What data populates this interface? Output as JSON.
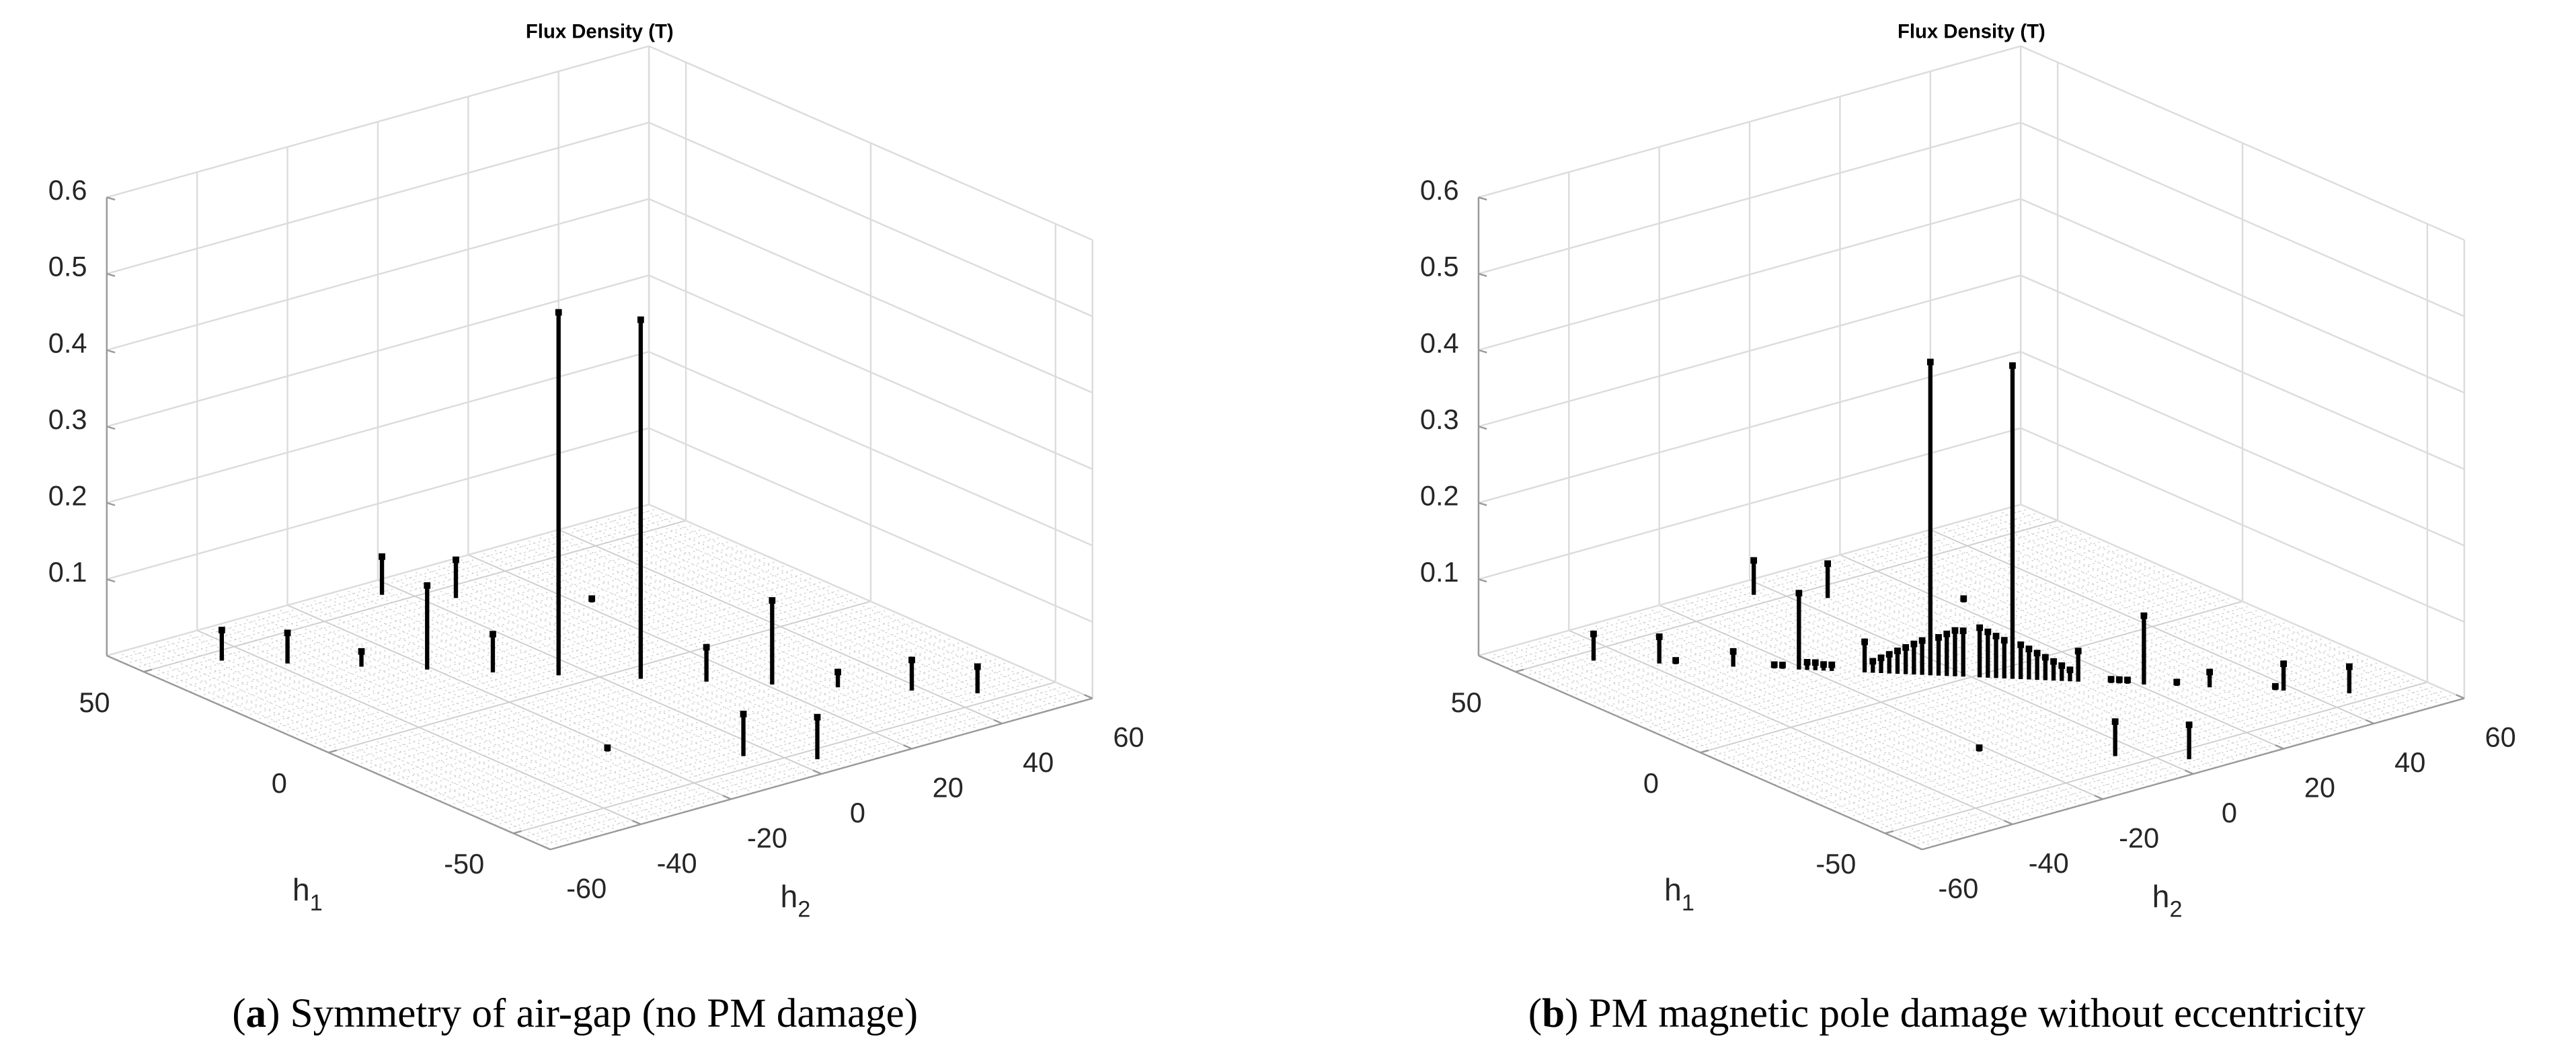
{
  "chart_data": [
    {
      "type": "stem3",
      "title": "Flux Density (T)",
      "xlabel": "h",
      "xlabel_subscript": "1",
      "ylabel": "h",
      "ylabel_subscript": "2",
      "xlim": [
        -60,
        60
      ],
      "xticks": [
        -50,
        0,
        50
      ],
      "ylim": [
        -60,
        60
      ],
      "yticks": [
        -60,
        -40,
        -20,
        0,
        20,
        40,
        60
      ],
      "zlim": [
        0,
        0.6
      ],
      "zticks": [
        0.1,
        0.2,
        0.3,
        0.4,
        0.5,
        0.6
      ],
      "color": "#000000",
      "grid": true,
      "x": [
        46,
        38,
        29,
        21,
        13,
        5,
        -5,
        -13,
        -21,
        -29,
        -38,
        -46,
        54,
        45,
        -45,
        -54,
        29,
        -29
      ],
      "y": [
        -46,
        -38,
        -29,
        -21,
        -13,
        -5,
        5,
        13,
        21,
        29,
        38,
        46,
        -4,
        5,
        -5,
        4,
        22,
        -22
      ],
      "z": [
        0.04,
        0.04,
        0.02,
        0.11,
        0.05,
        0.475,
        0.47,
        0.045,
        0.11,
        0.02,
        0.04,
        0.035,
        0.05,
        0.05,
        0.055,
        0.055,
        0.005,
        0.005
      ],
      "caption": [
        "(",
        "a",
        ") Symmetry of air-gap (no PM damage)"
      ]
    },
    {
      "type": "stem3",
      "title": "Flux Density (T)",
      "xlabel": "h",
      "xlabel_subscript": "1",
      "ylabel": "h",
      "ylabel_subscript": "2",
      "xlim": [
        -60,
        60
      ],
      "xticks": [
        -50,
        0,
        50
      ],
      "ylim": [
        -60,
        60
      ],
      "yticks": [
        -60,
        -40,
        -20,
        0,
        20,
        40,
        60
      ],
      "zlim": [
        0,
        0.6
      ],
      "zticks": [
        0.1,
        0.2,
        0.3,
        0.4,
        0.5,
        0.6
      ],
      "color": "#000000",
      "grid": true,
      "x": [
        46,
        38,
        36,
        29,
        24,
        23,
        21,
        20,
        19,
        18,
        17,
        13,
        12,
        11,
        10,
        9,
        8,
        7,
        6,
        5,
        4,
        3,
        2,
        1,
        -1,
        -2,
        -3,
        -4,
        -5,
        -6,
        -7,
        -8,
        -9,
        -10,
        -11,
        -12,
        -13,
        -17,
        -18,
        -19,
        -21,
        -25,
        -29,
        -37,
        -38,
        -46,
        54,
        45,
        -45,
        -54,
        29,
        -29
      ],
      "y": [
        -46,
        -38,
        -36,
        -29,
        -24,
        -23,
        -21,
        -20,
        -19,
        -18,
        -17,
        -13,
        -12,
        -11,
        -10,
        -9,
        -8,
        -7,
        -6,
        -5,
        -4,
        -3,
        -2,
        -1,
        1,
        2,
        3,
        4,
        5,
        6,
        7,
        8,
        9,
        10,
        11,
        12,
        13,
        17,
        18,
        19,
        21,
        25,
        29,
        37,
        38,
        46,
        -4,
        5,
        -5,
        4,
        22,
        -22
      ],
      "z": [
        0.035,
        0.035,
        0.005,
        0.02,
        0.005,
        0.005,
        0.1,
        0.01,
        0.01,
        0.008,
        0.008,
        0.04,
        0.015,
        0.02,
        0.025,
        0.03,
        0.035,
        0.04,
        0.045,
        0.41,
        0.05,
        0.055,
        0.06,
        0.06,
        0.065,
        0.06,
        0.055,
        0.05,
        0.41,
        0.045,
        0.04,
        0.035,
        0.03,
        0.025,
        0.02,
        0.015,
        0.04,
        0.005,
        0.005,
        0.005,
        0.09,
        0.005,
        0.02,
        0.005,
        0.035,
        0.035,
        0.045,
        0.045,
        0.045,
        0.045,
        0.005,
        0.005
      ],
      "caption": [
        "(",
        "b",
        ") PM magnetic pole damage without eccentricity"
      ]
    }
  ]
}
